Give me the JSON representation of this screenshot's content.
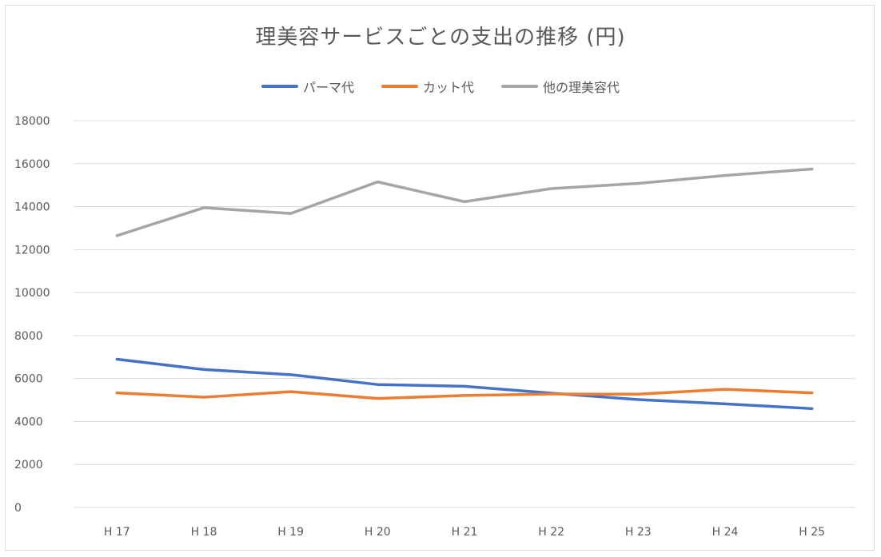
{
  "chart_data": {
    "type": "line",
    "title": "理美容サービスごとの支出の推移 (円)",
    "categories": [
      "H 17",
      "H 18",
      "H 19",
      "H 20",
      "H 21",
      "H 22",
      "H 23",
      "H 24",
      "H 25"
    ],
    "ylim": [
      0,
      18000
    ],
    "yticks": [
      "0",
      "2000",
      "4000",
      "6000",
      "8000",
      "10000",
      "12000",
      "14000",
      "16000",
      "18000"
    ],
    "grid": true,
    "legend_position": "top",
    "series": [
      {
        "name": "パーマ代",
        "color": "#4472c4",
        "values": [
          6900,
          6420,
          6180,
          5720,
          5640,
          5320,
          5020,
          4820,
          4600
        ]
      },
      {
        "name": "カット代",
        "color": "#ed7d31",
        "values": [
          5330,
          5130,
          5390,
          5070,
          5210,
          5280,
          5270,
          5500,
          5330
        ]
      },
      {
        "name": "他の理美容代",
        "color": "#a5a5a5",
        "values": [
          12650,
          13950,
          13680,
          15150,
          14230,
          14840,
          15080,
          15450,
          15750
        ]
      }
    ]
  }
}
